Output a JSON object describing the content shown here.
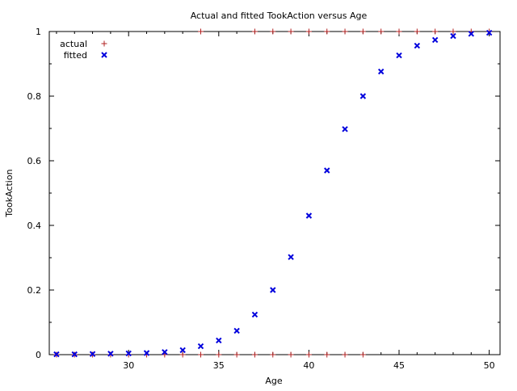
{
  "chart_data": {
    "type": "scatter",
    "title": "Actual and fitted TookAction versus Age",
    "xlabel": "Age",
    "ylabel": "TookAction",
    "xlim": [
      25.6,
      50.6
    ],
    "ylim": [
      0,
      1
    ],
    "x_ticks": [
      30,
      35,
      40,
      45,
      50
    ],
    "y_ticks": [
      0,
      0.2,
      0.4,
      0.6,
      0.8,
      1
    ],
    "x_tick_labels": [
      "30",
      "35",
      "40",
      "45",
      "50"
    ],
    "y_tick_labels": [
      "0",
      "0.2",
      "0.4",
      "0.6",
      "0.8",
      "1"
    ],
    "grid": false,
    "legend_position": "top-left",
    "series": [
      {
        "name": "actual",
        "marker": "plus",
        "color": "#b22222",
        "points": [
          [
            26,
            0
          ],
          [
            27,
            0
          ],
          [
            28,
            0
          ],
          [
            29,
            0
          ],
          [
            30,
            0
          ],
          [
            31,
            0
          ],
          [
            32,
            0
          ],
          [
            33,
            0
          ],
          [
            34,
            0
          ],
          [
            34,
            1
          ],
          [
            35,
            0
          ],
          [
            36,
            0
          ],
          [
            37,
            0
          ],
          [
            37,
            1
          ],
          [
            38,
            0
          ],
          [
            38,
            1
          ],
          [
            39,
            0
          ],
          [
            39,
            1
          ],
          [
            40,
            0
          ],
          [
            40,
            1
          ],
          [
            41,
            0
          ],
          [
            41,
            1
          ],
          [
            42,
            0
          ],
          [
            42,
            1
          ],
          [
            43,
            0
          ],
          [
            43,
            1
          ],
          [
            44,
            1
          ],
          [
            45,
            1
          ],
          [
            46,
            1
          ],
          [
            47,
            1
          ],
          [
            48,
            1
          ],
          [
            49,
            1
          ],
          [
            50,
            1
          ]
        ]
      },
      {
        "name": "fitted",
        "marker": "x",
        "color": "#0000dd",
        "points": [
          [
            26,
            0.001
          ],
          [
            27,
            0.001
          ],
          [
            28,
            0.002
          ],
          [
            29,
            0.003
          ],
          [
            30,
            0.004
          ],
          [
            31,
            0.005
          ],
          [
            32,
            0.008
          ],
          [
            33,
            0.014
          ],
          [
            34,
            0.026
          ],
          [
            35,
            0.044
          ],
          [
            36,
            0.074
          ],
          [
            37,
            0.124
          ],
          [
            38,
            0.2
          ],
          [
            39,
            0.302
          ],
          [
            40,
            0.43
          ],
          [
            41,
            0.57
          ],
          [
            42,
            0.698
          ],
          [
            43,
            0.8
          ],
          [
            44,
            0.876
          ],
          [
            45,
            0.926
          ],
          [
            46,
            0.956
          ],
          [
            47,
            0.974
          ],
          [
            48,
            0.986
          ],
          [
            49,
            0.993
          ],
          [
            50,
            0.996
          ]
        ]
      }
    ]
  }
}
